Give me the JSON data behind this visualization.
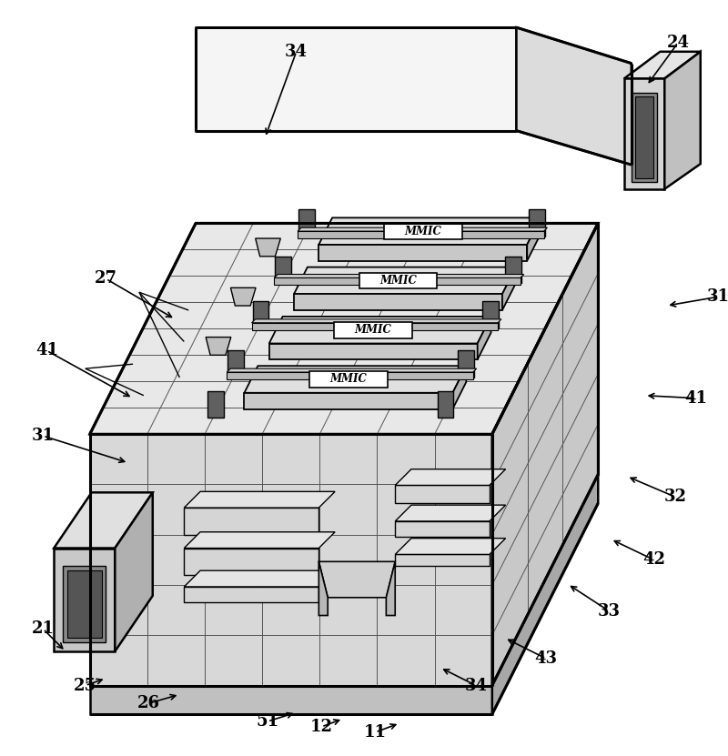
{
  "fig_width": 8.0,
  "fig_height": 8.31,
  "dpi": 100,
  "bg_color": "#ffffff",
  "line_color": "#000000",
  "annotations": {
    "24": [
      755,
      42,
      720,
      90
    ],
    "34t": [
      330,
      52,
      295,
      148
    ],
    "27": [
      118,
      305,
      195,
      350
    ],
    "41l": [
      52,
      385,
      148,
      438
    ],
    "31l": [
      48,
      480,
      143,
      510
    ],
    "21": [
      48,
      695,
      73,
      720
    ],
    "25": [
      95,
      758,
      118,
      750
    ],
    "26": [
      165,
      778,
      200,
      768
    ],
    "51": [
      298,
      798,
      330,
      788
    ],
    "12": [
      358,
      804,
      382,
      795
    ],
    "11": [
      418,
      810,
      445,
      800
    ],
    "34b": [
      530,
      758,
      490,
      738
    ],
    "43": [
      608,
      728,
      562,
      705
    ],
    "33": [
      678,
      675,
      632,
      645
    ],
    "42": [
      728,
      618,
      680,
      595
    ],
    "32": [
      752,
      548,
      698,
      525
    ],
    "41r": [
      775,
      438,
      718,
      435
    ],
    "31r": [
      800,
      325,
      742,
      335
    ]
  }
}
